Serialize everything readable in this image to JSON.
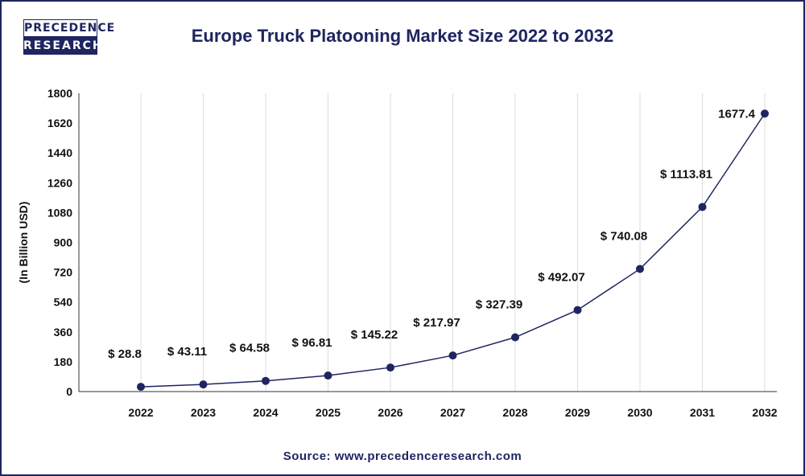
{
  "logo": {
    "line1": "PRECEDENCE",
    "line2": "RESEARCH"
  },
  "source": "Source: www.precedenceresearch.com",
  "colors": {
    "line": "#1e2560",
    "grid": "#dddddd"
  },
  "chart_data": {
    "type": "line",
    "title": "Europe Truck Platooning Market Size 2022 to 2032",
    "xlabel": "",
    "ylabel": "(In Billion USD)",
    "categories": [
      "2022",
      "2023",
      "2024",
      "2025",
      "2026",
      "2027",
      "2028",
      "2029",
      "2030",
      "2031",
      "2032"
    ],
    "values": [
      28.8,
      43.11,
      64.58,
      96.81,
      145.22,
      217.97,
      327.39,
      492.07,
      740.08,
      1113.81,
      1677.4
    ],
    "data_labels": [
      "$ 28.8",
      "$ 43.11",
      "$ 64.58",
      "$ 96.81",
      "$ 145.22",
      "$ 217.97",
      "$ 327.39",
      "$ 492.07",
      "$ 740.08",
      "$ 1113.81",
      "1677.4"
    ],
    "ylim": [
      0,
      1800
    ],
    "yticks": [
      0,
      180,
      360,
      540,
      720,
      900,
      1080,
      1260,
      1440,
      1620,
      1800
    ],
    "grid": "vertical"
  }
}
